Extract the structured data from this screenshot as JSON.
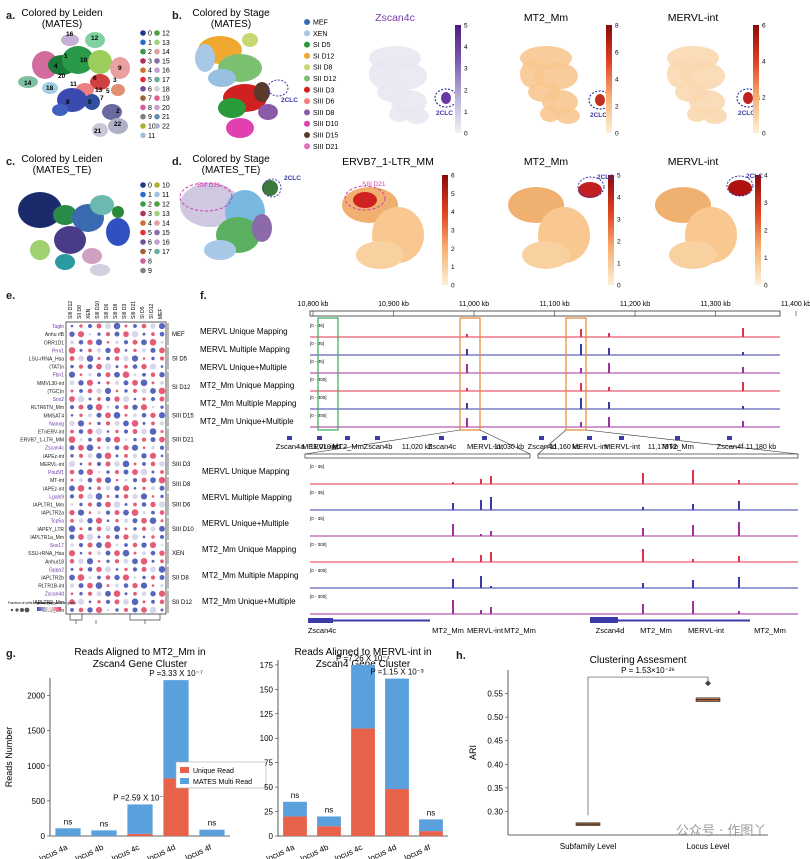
{
  "panels": {
    "a": {
      "label": "a.",
      "title": "Colored by Leiden\n(MATES)",
      "legend_col1": [
        "0",
        "1",
        "2",
        "3",
        "4",
        "5",
        "6",
        "7",
        "8",
        "9",
        "10",
        "11"
      ],
      "legend_col2": [
        "12",
        "13",
        "14",
        "15",
        "16",
        "17",
        "18",
        "19",
        "20",
        "21",
        "22"
      ],
      "cluster_labels": [
        "16",
        "12",
        "14",
        "20",
        "18",
        "10",
        "13",
        "9",
        "3",
        "6",
        "7",
        "1",
        "11",
        "5",
        "8",
        "22",
        "2",
        "21",
        "4",
        "0"
      ]
    },
    "b": {
      "label": "b.",
      "title": "Colored by Stage\n(MATES)",
      "stages": [
        "MEF",
        "XEN",
        "SI D5",
        "SI D12",
        "SII D8",
        "SII D12",
        "SIII D3",
        "SIII D6",
        "SIII D8",
        "SIII D10",
        "SIII D15",
        "SIII D21"
      ],
      "feature_titles": [
        "Zscan4c",
        "MT2_Mm",
        "MERVL-int"
      ],
      "annotation": "2CLC",
      "scale_zscan4c": [
        "5",
        "4",
        "3",
        "2",
        "1",
        "0"
      ],
      "scale_mt2": [
        "8",
        "6",
        "4",
        "2",
        "0"
      ],
      "scale_mervl": [
        "6",
        "4",
        "2",
        "0"
      ]
    },
    "c": {
      "label": "c.",
      "title": "Colored by Leiden\n(MATES_TE)",
      "legend_col1": [
        "0",
        "1",
        "2",
        "3",
        "4",
        "5",
        "6",
        "7",
        "8",
        "9"
      ],
      "legend_col2": [
        "10",
        "11",
        "12",
        "13",
        "14",
        "15",
        "16",
        "17"
      ]
    },
    "d": {
      "label": "d.",
      "title": "Colored by Stage\n(MATES_TE)",
      "feature_titles": [
        "ERVB7_1-LTR_MM",
        "MT2_Mm",
        "MERVL-int"
      ],
      "annotation_1": "SIII D21",
      "annotation_2": "2CLC",
      "scale_ervb7": [
        "6",
        "5",
        "4",
        "3",
        "2",
        "1",
        "0"
      ],
      "scale_mt2": [
        "5",
        "4",
        "3",
        "2",
        "1",
        "0"
      ],
      "scale_mervl": [
        "4",
        "3",
        "2",
        "1",
        "0"
      ]
    },
    "e": {
      "label": "e.",
      "columns": [
        "SIII D12",
        "SII D8",
        "XEN",
        "SIII D10",
        "SIII D6",
        "SIII D8",
        "SIII D3",
        "SIII D21",
        "SI D5",
        "SI D12",
        "MEF"
      ],
      "rows": [
        "Tagln",
        "Anhu rlB",
        "ORR1D1",
        "Prrx1",
        "LSU-rRNA_Hsa",
        "(TAT)n",
        "Fbn1",
        "MMVL30-int",
        "(TGC)n",
        "Sox2",
        "RLTR6TN_Mm",
        "MMSAT4",
        "Nanog",
        "ETnERV-int",
        "ERVB7_1-LTR_MM",
        "Zscan4c",
        "IAPEz-int",
        "MERVL-int",
        "Pou5f1",
        "MT-int",
        "IAPEz-int",
        "Lgals9",
        "IAPLTR1_Mm",
        "IAPLTR2a",
        "Tcp5a",
        "IAPEY_LTR",
        "IAPLTR1a_Mm",
        "Sox17",
        "SSU-rRNA_Hsa",
        "Anhur18",
        "Gppa2",
        "IAPLTR2b",
        "RLTR1B-int",
        "Zscan4d",
        "IAPLTR2_Mm",
        "MT2_Mm"
      ],
      "groups": [
        "MEF",
        "SI D5",
        "SI D12",
        "SIII D15",
        "SIII D21",
        "SIII D3",
        "SIII D8",
        "SIII D6",
        "SIII D10",
        "XEN",
        "SII D8",
        "SII D12"
      ],
      "legend_1": "Fraction of cells in group (%)",
      "legend_2": "Mean expression in group"
    },
    "f": {
      "label": "f.",
      "top_axis": [
        "10,800 kb",
        "10,900 kb",
        "11,000 kb",
        "11,100 kb",
        "11,200 kb",
        "11,300 kb",
        "11,400 kb"
      ],
      "tracks": [
        "MERVL Unique Mapping",
        "MERVL Multiple Mapping",
        "MERVL Unique+Multiple",
        "MT2_Mm Unique Mapping",
        "MT2_Mm Multiple Mapping",
        "MT2_Mm Unique+Multiple"
      ],
      "ranges": [
        "[0 - 35]",
        "[0 - 35]",
        "[0 - 35]",
        "[0 - 300]",
        "[0 - 300]",
        "[0 - 300]"
      ],
      "genes_top": [
        "Zscan4a",
        "MERVL-int",
        "MT2_Mm",
        "Zscan4b",
        "Zscan4c",
        "MERVL-int",
        "Zscan4d",
        "MERVL-int",
        "MERVL-int",
        "MT2_Mm",
        "Zscan4f"
      ],
      "left_axis": [
        "11,010 kb",
        "11,020 kb",
        "11,030 kb"
      ],
      "right_axis": [
        "11,160 kb",
        "11,170 kb",
        "11,180 kb"
      ],
      "genes_left": [
        "Zscan4c",
        "MT2_Mm",
        "MERVL-int",
        "MT2_Mm"
      ],
      "genes_right": [
        "Zscan4d",
        "MT2_Mm",
        "MERVL-int",
        "MT2_Mm"
      ]
    },
    "g": {
      "label": "g."
    },
    "h": {
      "label": "h."
    }
  },
  "chart_data": [
    {
      "type": "bar",
      "title": "Reads Aligned to MT2_Mm in\nZscan4 Gene Cluster",
      "categories": [
        "locus 4a",
        "locus 4b",
        "locus 4c",
        "locus 4d",
        "locus 4f"
      ],
      "series": [
        {
          "name": "Unique Read",
          "values": [
            0,
            0,
            30,
            820,
            0
          ]
        },
        {
          "name": "MATES Multi Read",
          "values": [
            110,
            80,
            420,
            1400,
            90
          ]
        }
      ],
      "ylabel": "Reads Number",
      "ylim": [
        0,
        2250
      ],
      "yticks": [
        0,
        500,
        1000,
        1500,
        2000
      ],
      "annotations": [
        {
          "cat": "locus 4a",
          "text": "ns"
        },
        {
          "cat": "locus 4b",
          "text": "ns"
        },
        {
          "cat": "locus 4c",
          "text": "P =2.59 X 10⁻⁵"
        },
        {
          "cat": "locus 4d",
          "text": "P =3.33 X 10⁻⁷"
        },
        {
          "cat": "locus 4f",
          "text": "ns"
        }
      ],
      "legend": "center-right"
    },
    {
      "type": "bar",
      "title": "Reads Aligned to MERVL-int in\nZscan4 Gene Cluster",
      "categories": [
        "locus 4a",
        "locus 4b",
        "locus 4c",
        "locus 4d",
        "locus 4f"
      ],
      "series": [
        {
          "name": "Unique Read",
          "values": [
            20,
            10,
            110,
            48,
            5
          ]
        },
        {
          "name": "MATES Multi Read",
          "values": [
            15,
            10,
            65,
            113,
            12
          ]
        }
      ],
      "ylabel": "",
      "ylim": [
        0,
        180
      ],
      "yticks": [
        0,
        25,
        50,
        75,
        100,
        125,
        150,
        175
      ],
      "annotations": [
        {
          "cat": "locus 4a",
          "text": "ns"
        },
        {
          "cat": "locus 4b",
          "text": "ns"
        },
        {
          "cat": "locus 4c",
          "text": "P =7.26 X 10⁻⁴"
        },
        {
          "cat": "locus 4d",
          "text": "P =1.15 X 10⁻³"
        },
        {
          "cat": "locus 4f",
          "text": "ns"
        }
      ]
    },
    {
      "type": "box",
      "title": "Clustering Assesment",
      "categories": [
        "Subfamily Level",
        "Locus Level"
      ],
      "medians": [
        0.273,
        0.537
      ],
      "q1": [
        0.27,
        0.533
      ],
      "q3": [
        0.276,
        0.541
      ],
      "outliers": [
        [],
        [
          0.572
        ]
      ],
      "ylabel": "ARI",
      "ylim": [
        0.25,
        0.6
      ],
      "yticks": [
        0.3,
        0.35,
        0.4,
        0.45,
        0.5,
        0.55
      ],
      "annotation": "P = 1.53×10⁻²⁶"
    }
  ],
  "colors": {
    "unique": "#e8624a",
    "multi": "#5aa0dc",
    "mervl_track": "#e0304a",
    "mt2_track": "#3a3aa8",
    "combined_track": "#a0309a",
    "locus_box": "#e8872d",
    "green_box": "#3aaa5a",
    "circle": "#3a3aa8"
  },
  "watermark": "公众号 · 作图丫"
}
